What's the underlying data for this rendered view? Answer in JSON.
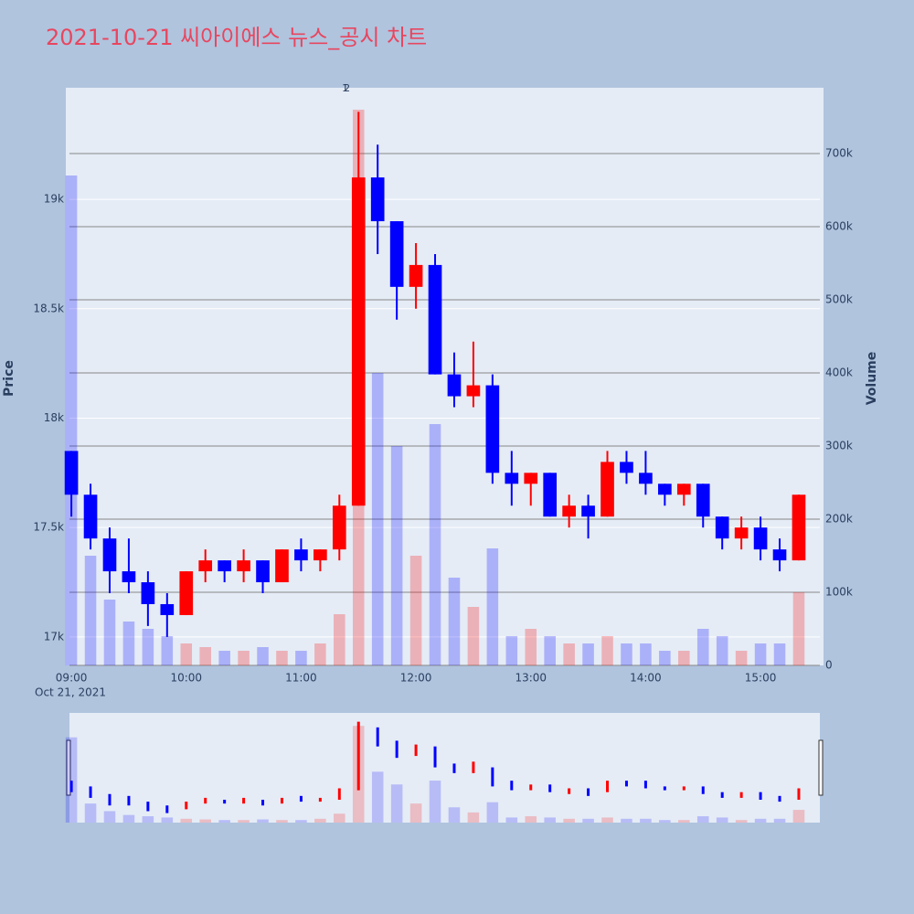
{
  "chart_data": {
    "type": "candlestick",
    "title": "2021-10-21 씨아이에스 뉴스_공시 차트",
    "y_label": "Price",
    "y2_label": "Volume",
    "x_date_label": "Oct 21, 2021",
    "increasing_color": "#ff0000",
    "decreasing_color": "#0000ff",
    "x": [
      "09:00",
      "09:10",
      "09:20",
      "09:30",
      "09:40",
      "09:50",
      "10:00",
      "10:10",
      "10:20",
      "10:30",
      "10:40",
      "10:50",
      "11:00",
      "11:10",
      "11:20",
      "11:30",
      "11:40",
      "11:50",
      "12:00",
      "12:10",
      "12:20",
      "12:30",
      "12:40",
      "12:50",
      "13:00",
      "13:10",
      "13:20",
      "13:30",
      "13:40",
      "13:50",
      "14:00",
      "14:10",
      "14:20",
      "14:30",
      "14:40",
      "14:50",
      "15:00",
      "15:10",
      "15:20"
    ],
    "open": [
      17850,
      17650,
      17450,
      17300,
      17250,
      17150,
      17100,
      17300,
      17350,
      17300,
      17350,
      17250,
      17400,
      17350,
      17400,
      17600,
      19100,
      18900,
      18600,
      18700,
      18200,
      18100,
      18150,
      17750,
      17700,
      17750,
      17550,
      17600,
      17550,
      17800,
      17750,
      17700,
      17650,
      17700,
      17550,
      17450,
      17500,
      17400,
      17350
    ],
    "high": [
      17850,
      17700,
      17500,
      17450,
      17300,
      17200,
      17300,
      17400,
      17350,
      17400,
      17350,
      17400,
      17450,
      17400,
      17650,
      19400,
      19250,
      18900,
      18800,
      18750,
      18300,
      18350,
      18200,
      17850,
      17750,
      17750,
      17650,
      17650,
      17850,
      17850,
      17850,
      17700,
      17700,
      17700,
      17550,
      17550,
      17550,
      17450,
      17650
    ],
    "low": [
      17550,
      17400,
      17200,
      17200,
      17050,
      17000,
      17100,
      17250,
      17250,
      17250,
      17200,
      17250,
      17300,
      17300,
      17350,
      17600,
      18750,
      18450,
      18500,
      18200,
      18050,
      18050,
      17700,
      17600,
      17600,
      17550,
      17500,
      17450,
      17550,
      17700,
      17650,
      17600,
      17600,
      17500,
      17400,
      17400,
      17350,
      17300,
      17350
    ],
    "close": [
      17650,
      17450,
      17300,
      17250,
      17150,
      17100,
      17300,
      17350,
      17300,
      17350,
      17250,
      17400,
      17350,
      17400,
      17600,
      19100,
      18900,
      18600,
      18700,
      18200,
      18100,
      18150,
      17750,
      17700,
      17750,
      17550,
      17600,
      17550,
      17800,
      17750,
      17700,
      17650,
      17700,
      17550,
      17450,
      17500,
      17400,
      17350,
      17650
    ],
    "volume": [
      670000,
      150000,
      90000,
      60000,
      50000,
      40000,
      30000,
      25000,
      20000,
      20000,
      25000,
      20000,
      20000,
      30000,
      70000,
      760000,
      400000,
      300000,
      150000,
      330000,
      120000,
      80000,
      160000,
      40000,
      50000,
      40000,
      30000,
      30000,
      40000,
      30000,
      30000,
      20000,
      20000,
      50000,
      40000,
      20000,
      30000,
      30000,
      100000
    ],
    "xlim": [
      "08:59",
      "15:31"
    ],
    "xticks": [
      "09:00",
      "10:00",
      "11:00",
      "12:00",
      "13:00",
      "14:00",
      "15:00"
    ],
    "ylim": [
      16870,
      19510
    ],
    "yticks": [
      {
        "value": 17000,
        "label": "17k"
      },
      {
        "value": 17500,
        "label": "17.5k"
      },
      {
        "value": 18000,
        "label": "18k"
      },
      {
        "value": 18500,
        "label": "18.5k"
      },
      {
        "value": 19000,
        "label": "19k"
      }
    ],
    "y2lim": [
      0,
      790000
    ],
    "y2ticks": [
      0,
      {
        "value": 100000,
        "label": "100k"
      },
      {
        "value": 200000,
        "label": "200k"
      },
      {
        "value": 300000,
        "label": "300k"
      },
      {
        "value": 400000,
        "label": "400k"
      },
      {
        "value": 500000,
        "label": "500k"
      },
      {
        "value": 600000,
        "label": "600k"
      },
      {
        "value": 700000,
        "label": "700k"
      }
    ],
    "annotations": [
      {
        "x": "11:23",
        "text": "1"
      },
      {
        "x": "11:24",
        "text": "2"
      }
    ]
  }
}
